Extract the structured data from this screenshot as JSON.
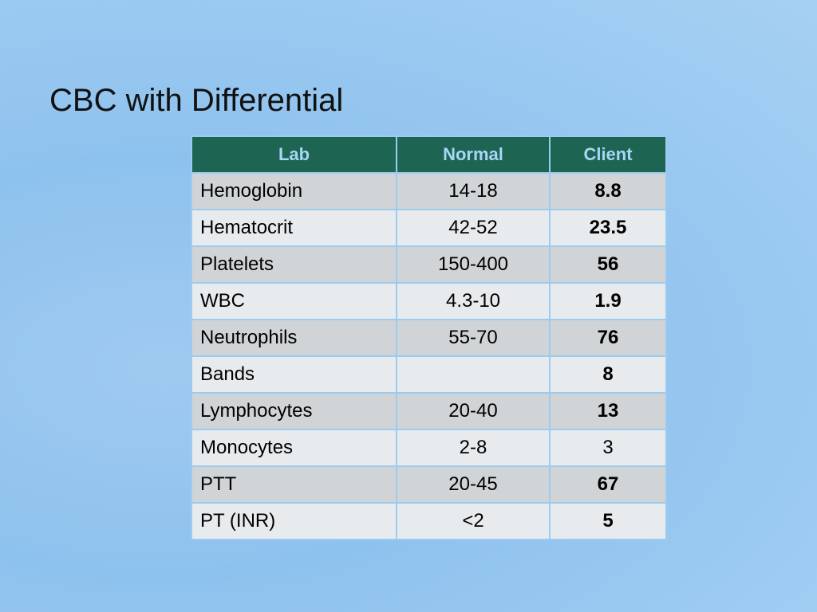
{
  "header": {
    "title": "CBC with Differential"
  },
  "table": {
    "columns": [
      "Lab",
      "Normal",
      "Client"
    ],
    "rows": [
      {
        "lab": "Hemoglobin",
        "normal": "14-18",
        "client": "8.8",
        "bold": true
      },
      {
        "lab": "Hematocrit",
        "normal": "42-52",
        "client": "23.5",
        "bold": true
      },
      {
        "lab": "Platelets",
        "normal": "150-400",
        "client": "56",
        "bold": true
      },
      {
        "lab": "WBC",
        "normal": "4.3-10",
        "client": "1.9",
        "bold": true
      },
      {
        "lab": "Neutrophils",
        "normal": "55-70",
        "client": "76",
        "bold": true
      },
      {
        "lab": "Bands",
        "normal": null,
        "client": "8",
        "bold": true
      },
      {
        "lab": "Lymphocytes",
        "normal": "20-40",
        "client": "13",
        "bold": true
      },
      {
        "lab": "Monocytes",
        "normal": "2-8",
        "client": "3",
        "bold": false
      },
      {
        "lab": "PTT",
        "normal": "20-45",
        "client": "67",
        "bold": true
      },
      {
        "lab": "PT (INR)",
        "normal": "<2",
        "client": "5",
        "bold": true
      }
    ]
  }
}
